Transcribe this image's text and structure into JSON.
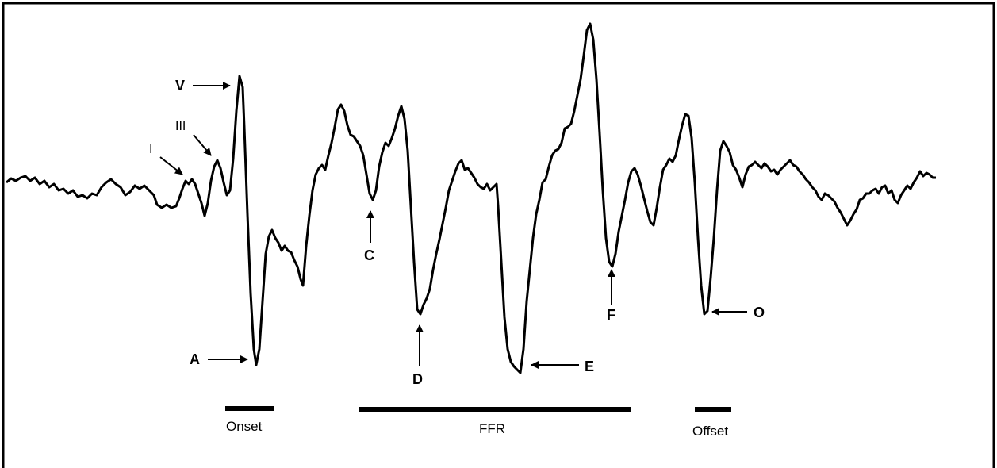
{
  "peaks": {
    "i": "I",
    "iii": "III",
    "v": "V",
    "a": "A",
    "c": "C",
    "d": "D",
    "e": "E",
    "f": "F",
    "o": "O"
  },
  "segments": {
    "onset": "Onset",
    "ffr": "FFR",
    "offset": "Offset"
  }
}
